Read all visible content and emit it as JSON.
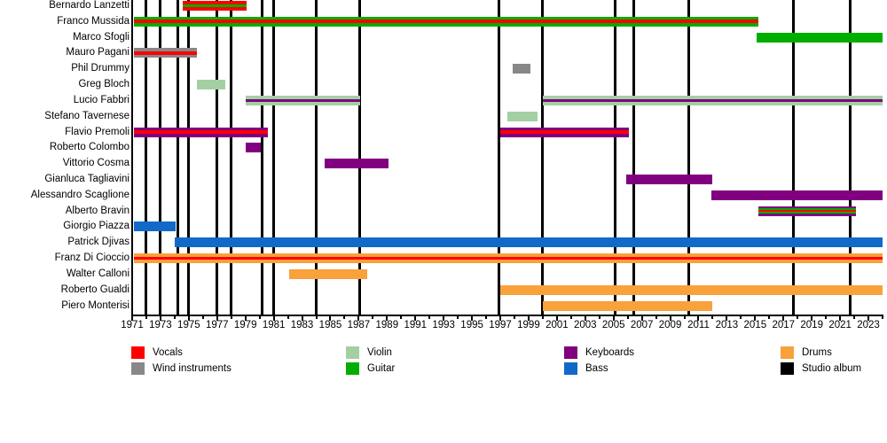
{
  "chart_data": {
    "type": "timeline",
    "description": "Band members timeline chart: colored horizontal bars per member by instrument, black vertical lines mark studio albums",
    "x_axis": {
      "start_year": 1971,
      "end_year": 2024,
      "tick_labels": [
        1971,
        1973,
        1975,
        1977,
        1979,
        1981,
        1983,
        1985,
        1987,
        1989,
        1991,
        1993,
        1995,
        1997,
        1999,
        2001,
        2003,
        2005,
        2007,
        2009,
        2011,
        2013,
        2015,
        2017,
        2019,
        2021,
        2023
      ]
    },
    "colors": {
      "vocals": "#FF0000",
      "wind": "#888888",
      "violin": "#A3CFA3",
      "guitar": "#00AD00",
      "keyboards": "#800080",
      "bass": "#1169C8",
      "drums": "#F9A13B",
      "album": "#000000"
    },
    "legend": [
      {
        "label": "Vocals",
        "color": "vocals",
        "col": 0,
        "row": 0
      },
      {
        "label": "Wind instruments",
        "color": "wind",
        "col": 0,
        "row": 1
      },
      {
        "label": "Violin",
        "color": "violin",
        "col": 1,
        "row": 0
      },
      {
        "label": "Guitar",
        "color": "guitar",
        "col": 1,
        "row": 1
      },
      {
        "label": "Keyboards",
        "color": "keyboards",
        "col": 2,
        "row": 0
      },
      {
        "label": "Bass",
        "color": "bass",
        "col": 2,
        "row": 1
      },
      {
        "label": "Drums",
        "color": "drums",
        "col": 3,
        "row": 0
      },
      {
        "label": "Studio album",
        "color": "album",
        "col": 3,
        "row": 1
      }
    ],
    "album_years": [
      1972.0,
      1973.0,
      1974.2,
      1975.0,
      1977.0,
      1978.0,
      1980.2,
      1981.0,
      1984.0,
      1987.1,
      1996.9,
      2000.0,
      2005.1,
      2006.4,
      2010.3,
      2017.7,
      2021.7
    ],
    "members": [
      {
        "name": "Bernardo Lanzetti",
        "bars": [
          {
            "from": 1974.6,
            "to": 1979.1,
            "stripes": [
              "vocals",
              "guitar",
              "vocals"
            ]
          }
        ]
      },
      {
        "name": "Franco Mussida",
        "bars": [
          {
            "from": 1971.1,
            "to": 2015.2,
            "stripes": [
              "guitar",
              "vocals",
              "guitar"
            ]
          }
        ]
      },
      {
        "name": "Marco Sfogli",
        "bars": [
          {
            "from": 2015.1,
            "to": 2024.0,
            "stripes": [
              "guitar"
            ]
          }
        ]
      },
      {
        "name": "Mauro Pagani",
        "bars": [
          {
            "from": 1971.1,
            "to": 1975.6,
            "stripes": [
              "wind",
              "vocals",
              "wind"
            ]
          }
        ]
      },
      {
        "name": "Phil Drummy",
        "bars": [
          {
            "from": 1997.9,
            "to": 1999.1,
            "stripes": [
              "wind"
            ]
          }
        ]
      },
      {
        "name": "Greg Bloch",
        "bars": [
          {
            "from": 1975.6,
            "to": 1977.6,
            "stripes": [
              "violin"
            ]
          }
        ]
      },
      {
        "name": "Lucio Fabbri",
        "bars": [
          {
            "from": 1979.0,
            "to": 1987.1,
            "stripes": [
              "violin",
              "keyboards",
              "violin"
            ]
          },
          {
            "from": 2000.0,
            "to": 2024.0,
            "stripes": [
              "violin",
              "keyboards",
              "violin"
            ]
          }
        ]
      },
      {
        "name": "Stefano Tavernese",
        "bars": [
          {
            "from": 1997.5,
            "to": 1999.6,
            "stripes": [
              "violin"
            ]
          }
        ]
      },
      {
        "name": "Flavio Premoli",
        "bars": [
          {
            "from": 1971.1,
            "to": 1980.6,
            "stripes": [
              "keyboards",
              "vocals",
              "keyboards"
            ]
          },
          {
            "from": 1997.0,
            "to": 2006.1,
            "stripes": [
              "keyboards",
              "vocals",
              "keyboards"
            ]
          }
        ]
      },
      {
        "name": "Roberto Colombo",
        "bars": [
          {
            "from": 1979.0,
            "to": 1980.1,
            "stripes": [
              "keyboards"
            ]
          }
        ]
      },
      {
        "name": "Vittorio Cosma",
        "bars": [
          {
            "from": 1984.6,
            "to": 1989.1,
            "stripes": [
              "keyboards"
            ]
          }
        ]
      },
      {
        "name": "Gianluca Tagliavini",
        "bars": [
          {
            "from": 2005.9,
            "to": 2012.0,
            "stripes": [
              "keyboards"
            ]
          }
        ]
      },
      {
        "name": "Alessandro Scaglione",
        "bars": [
          {
            "from": 2011.9,
            "to": 2024.0,
            "stripes": [
              "keyboards"
            ]
          }
        ]
      },
      {
        "name": "Alberto Bravin",
        "bars": [
          {
            "from": 2015.2,
            "to": 2022.1,
            "stripes": [
              "keyboards",
              "guitar",
              "vocals",
              "guitar",
              "keyboards"
            ]
          }
        ]
      },
      {
        "name": "Giorgio Piazza",
        "bars": [
          {
            "from": 1971.1,
            "to": 1974.1,
            "stripes": [
              "bass"
            ]
          }
        ]
      },
      {
        "name": "Patrick Djivas",
        "bars": [
          {
            "from": 1974.0,
            "to": 2024.0,
            "stripes": [
              "bass"
            ]
          }
        ]
      },
      {
        "name": "Franz Di Cioccio",
        "bars": [
          {
            "from": 1971.1,
            "to": 2024.0,
            "stripes": [
              "drums",
              "vocals",
              "drums"
            ]
          }
        ]
      },
      {
        "name": "Walter Calloni",
        "bars": [
          {
            "from": 1982.1,
            "to": 1987.6,
            "stripes": [
              "drums"
            ]
          }
        ]
      },
      {
        "name": "Roberto Gualdi",
        "bars": [
          {
            "from": 1997.0,
            "to": 2024.0,
            "stripes": [
              "drums"
            ]
          }
        ]
      },
      {
        "name": "Piero Monterisi",
        "bars": [
          {
            "from": 2000.0,
            "to": 2012.0,
            "stripes": [
              "drums"
            ]
          }
        ]
      }
    ]
  }
}
